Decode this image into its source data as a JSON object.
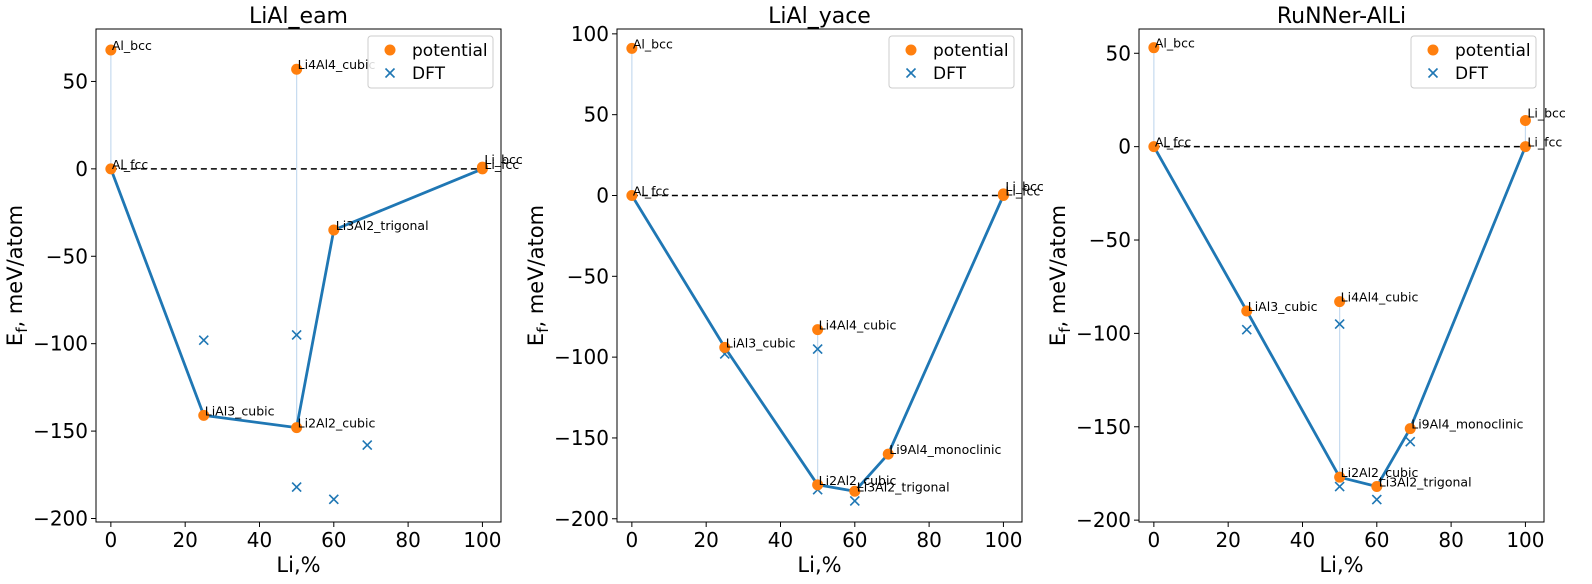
{
  "chart_data": [
    {
      "type": "scatter",
      "title": "LiAl_eam",
      "xlabel": "Li,%",
      "ylabel": "E",
      "ylabel_sub": "f",
      "ylabel_rest": ", meV/atom",
      "xlim": [
        -4,
        105
      ],
      "ylim": [
        -202,
        80
      ],
      "xticks": [
        0,
        20,
        40,
        60,
        80,
        100
      ],
      "yticks": [
        -200,
        -150,
        -100,
        -50,
        0,
        50
      ],
      "grid": false,
      "legend": {
        "position": "top-right",
        "entries": [
          "potential",
          "DFT"
        ]
      },
      "potential": [
        {
          "x": 0,
          "y": 68,
          "label": "Al_bcc"
        },
        {
          "x": 0,
          "y": 0,
          "label": "Al_fcc"
        },
        {
          "x": 50,
          "y": 57,
          "label": "Li4Al4_cubic"
        },
        {
          "x": 100,
          "y": 1,
          "label": "Li_bcc"
        },
        {
          "x": 100,
          "y": 0,
          "label": "Li_fcc"
        },
        {
          "x": 60,
          "y": -35,
          "label": "Li3Al2_trigonal"
        },
        {
          "x": 25,
          "y": -141,
          "label": "LiAl3_cubic"
        },
        {
          "x": 50,
          "y": -148,
          "label": "Li2Al2_cubic"
        }
      ],
      "dft": [
        {
          "x": 25,
          "y": -98
        },
        {
          "x": 50,
          "y": -95
        },
        {
          "x": 50,
          "y": -182
        },
        {
          "x": 60,
          "y": -189
        },
        {
          "x": 69,
          "y": -158
        }
      ],
      "hull": [
        [
          0,
          0
        ],
        [
          25,
          -141
        ],
        [
          50,
          -148
        ],
        [
          60,
          -35
        ],
        [
          100,
          0
        ]
      ],
      "droplines": [
        [
          0,
          0,
          68
        ],
        [
          50,
          -148,
          57
        ]
      ]
    },
    {
      "type": "scatter",
      "title": "LiAl_yace",
      "xlabel": "Li,%",
      "ylabel": "E",
      "ylabel_sub": "f",
      "ylabel_rest": ", meV/atom",
      "xlim": [
        -4,
        105
      ],
      "ylim": [
        -202,
        103
      ],
      "xticks": [
        0,
        20,
        40,
        60,
        80,
        100
      ],
      "yticks": [
        -200,
        -150,
        -100,
        -50,
        0,
        50,
        100
      ],
      "grid": false,
      "legend": {
        "position": "top-right",
        "entries": [
          "potential",
          "DFT"
        ]
      },
      "potential": [
        {
          "x": 0,
          "y": 91,
          "label": "Al_bcc"
        },
        {
          "x": 0,
          "y": 0,
          "label": "Al_fcc"
        },
        {
          "x": 100,
          "y": 1,
          "label": "Li_bcc"
        },
        {
          "x": 100,
          "y": 0,
          "label": "Li_fcc"
        },
        {
          "x": 25,
          "y": -94,
          "label": "LiAl3_cubic"
        },
        {
          "x": 50,
          "y": -83,
          "label": "Li4Al4_cubic"
        },
        {
          "x": 69,
          "y": -160,
          "label": "Li9Al4_monoclinic"
        },
        {
          "x": 50,
          "y": -179,
          "label": "Li2Al2_cubic"
        },
        {
          "x": 60,
          "y": -183,
          "label": "Li3Al2_trigonal"
        }
      ],
      "dft": [
        {
          "x": 25,
          "y": -98
        },
        {
          "x": 50,
          "y": -95
        },
        {
          "x": 50,
          "y": -182
        },
        {
          "x": 60,
          "y": -189
        }
      ],
      "hull": [
        [
          0,
          0
        ],
        [
          25,
          -94
        ],
        [
          50,
          -179
        ],
        [
          60,
          -183
        ],
        [
          69,
          -160
        ],
        [
          100,
          0
        ]
      ],
      "droplines": [
        [
          0,
          0,
          91
        ],
        [
          50,
          -179,
          -83
        ]
      ]
    },
    {
      "type": "scatter",
      "title": "RuNNer-AlLi",
      "xlabel": "Li,%",
      "ylabel": "E",
      "ylabel_sub": "f",
      "ylabel_rest": ", meV/atom",
      "xlim": [
        -4,
        105
      ],
      "ylim": [
        -201,
        63
      ],
      "xticks": [
        0,
        20,
        40,
        60,
        80,
        100
      ],
      "yticks": [
        -200,
        -150,
        -100,
        -50,
        0,
        50
      ],
      "grid": false,
      "legend": {
        "position": "top-right",
        "entries": [
          "potential",
          "DFT"
        ]
      },
      "potential": [
        {
          "x": 0,
          "y": 53,
          "label": "Al_bcc"
        },
        {
          "x": 0,
          "y": 0,
          "label": "Al_fcc"
        },
        {
          "x": 100,
          "y": 14,
          "label": "Li_bcc"
        },
        {
          "x": 100,
          "y": 0,
          "label": "Li_fcc"
        },
        {
          "x": 25,
          "y": -88,
          "label": "LiAl3_cubic"
        },
        {
          "x": 50,
          "y": -83,
          "label": "Li4Al4_cubic"
        },
        {
          "x": 69,
          "y": -151,
          "label": "Li9Al4_monoclinic"
        },
        {
          "x": 50,
          "y": -177,
          "label": "Li2Al2_cubic"
        },
        {
          "x": 60,
          "y": -182,
          "label": "Li3Al2_trigonal"
        }
      ],
      "dft": [
        {
          "x": 25,
          "y": -98
        },
        {
          "x": 50,
          "y": -95
        },
        {
          "x": 50,
          "y": -182
        },
        {
          "x": 60,
          "y": -189
        },
        {
          "x": 69,
          "y": -158
        }
      ],
      "hull": [
        [
          0,
          0
        ],
        [
          25,
          -88
        ],
        [
          50,
          -177
        ],
        [
          60,
          -182
        ],
        [
          69,
          -151
        ],
        [
          100,
          0
        ]
      ],
      "droplines": [
        [
          0,
          0,
          53
        ],
        [
          50,
          -177,
          -83
        ],
        [
          100,
          0,
          14
        ]
      ]
    }
  ],
  "colors": {
    "potential": "#ff7f0e",
    "dft": "#1f77b4",
    "hull": "#1f77b4",
    "dropline": "#c6dbef",
    "zero_line": "#000000"
  }
}
